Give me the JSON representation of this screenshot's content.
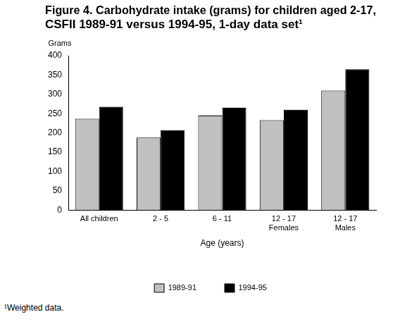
{
  "chart_data": {
    "type": "bar",
    "title": [
      "Figure 4. Carbohydrate intake (grams) for children aged 2-17,",
      "CSFII 1989-91 versus 1994-95, 1-day data set¹"
    ],
    "ylabel": "Grams",
    "xlabel": "Age (years)",
    "categories": [
      "All children",
      "2 - 5",
      "6 - 11",
      [
        "12 - 17",
        "Females"
      ],
      [
        "12 - 17",
        "Males"
      ]
    ],
    "series": [
      {
        "name": "1989-91",
        "color": "#c0c0c0",
        "values": [
          237,
          188,
          245,
          233,
          310
        ]
      },
      {
        "name": "1994-95",
        "color": "#000000",
        "values": [
          268,
          207,
          265,
          260,
          365
        ]
      }
    ],
    "ylim": [
      0,
      400
    ],
    "yticks": [
      0,
      50,
      100,
      150,
      200,
      250,
      300,
      350,
      400
    ],
    "grid": false,
    "legend": "bottom",
    "annotations": [
      "¹Weighted data."
    ]
  }
}
